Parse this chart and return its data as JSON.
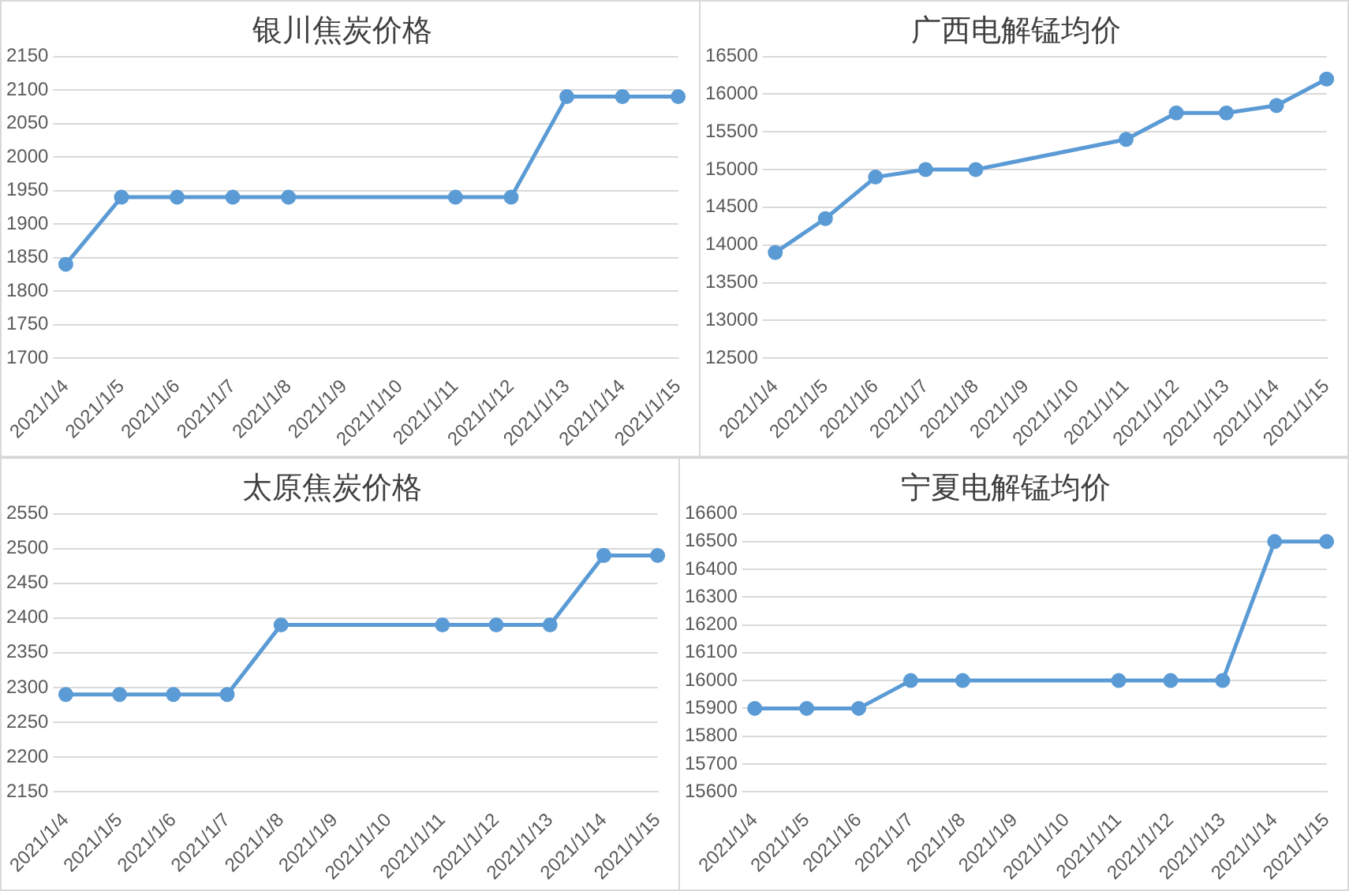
{
  "chart_data": [
    {
      "type": "line",
      "title": "银川焦炭价格",
      "categories": [
        "2021/1/4",
        "2021/1/5",
        "2021/1/6",
        "2021/1/7",
        "2021/1/8",
        "2021/1/9",
        "2021/1/10",
        "2021/1/11",
        "2021/1/12",
        "2021/1/13",
        "2021/1/14",
        "2021/1/15"
      ],
      "series": [
        {
          "color": "#5b9bd5",
          "values": [
            1840,
            1940,
            1940,
            1940,
            1940,
            null,
            null,
            1940,
            1940,
            2090,
            2090,
            2090
          ]
        }
      ],
      "ylim": [
        1700,
        2150
      ],
      "yticks": [
        1700,
        1750,
        1800,
        1850,
        1900,
        1950,
        2000,
        2050,
        2100,
        2150
      ],
      "grid": "y",
      "marker": "circle",
      "legend": false
    },
    {
      "type": "line",
      "title": "广西电解锰均价",
      "categories": [
        "2021/1/4",
        "2021/1/5",
        "2021/1/6",
        "2021/1/7",
        "2021/1/8",
        "2021/1/9",
        "2021/1/10",
        "2021/1/11",
        "2021/1/12",
        "2021/1/13",
        "2021/1/14",
        "2021/1/15"
      ],
      "series": [
        {
          "color": "#5b9bd5",
          "values": [
            13900,
            14350,
            14900,
            15000,
            15000,
            null,
            null,
            15400,
            15750,
            15750,
            15850,
            16200
          ]
        }
      ],
      "ylim": [
        12500,
        16500
      ],
      "yticks": [
        12500,
        13000,
        13500,
        14000,
        14500,
        15000,
        15500,
        16000,
        16500
      ],
      "grid": "y",
      "marker": "circle",
      "legend": false
    },
    {
      "type": "line",
      "title": "太原焦炭价格",
      "categories": [
        "2021/1/4",
        "2021/1/5",
        "2021/1/6",
        "2021/1/7",
        "2021/1/8",
        "2021/1/9",
        "2021/1/10",
        "2021/1/11",
        "2021/1/12",
        "2021/1/13",
        "2021/1/14",
        "2021/1/15"
      ],
      "series": [
        {
          "color": "#5b9bd5",
          "values": [
            2290,
            2290,
            2290,
            2290,
            2390,
            null,
            null,
            2390,
            2390,
            2390,
            2490,
            2490
          ]
        }
      ],
      "ylim": [
        2150,
        2550
      ],
      "yticks": [
        2150,
        2200,
        2250,
        2300,
        2350,
        2400,
        2450,
        2500,
        2550
      ],
      "grid": "y",
      "marker": "circle",
      "legend": false
    },
    {
      "type": "line",
      "title": "宁夏电解锰均价",
      "categories": [
        "2021/1/4",
        "2021/1/5",
        "2021/1/6",
        "2021/1/7",
        "2021/1/8",
        "2021/1/9",
        "2021/1/10",
        "2021/1/11",
        "2021/1/12",
        "2021/1/13",
        "2021/1/14",
        "2021/1/15"
      ],
      "series": [
        {
          "color": "#5b9bd5",
          "values": [
            15900,
            15900,
            15900,
            16000,
            16000,
            null,
            null,
            16000,
            16000,
            16000,
            16500,
            16500
          ]
        }
      ],
      "ylim": [
        15600,
        16600
      ],
      "yticks": [
        15600,
        15700,
        15800,
        15900,
        16000,
        16100,
        16200,
        16300,
        16400,
        16500,
        16600
      ],
      "grid": "y",
      "marker": "circle",
      "legend": false
    }
  ]
}
